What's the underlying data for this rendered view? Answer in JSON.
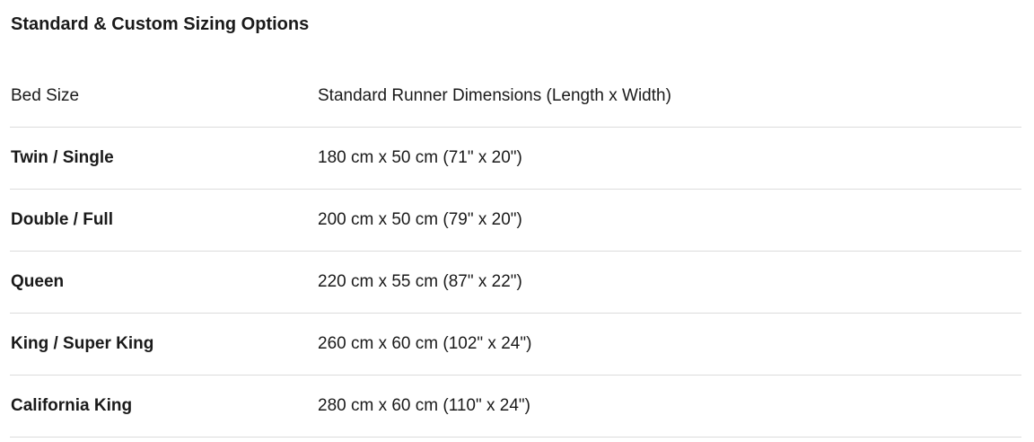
{
  "title": "Standard & Custom Sizing Options",
  "table": {
    "headers": [
      "Bed Size",
      "Standard Runner Dimensions (Length x Width)"
    ],
    "rows": [
      [
        "Twin / Single",
        "180 cm x 50 cm (71\" x 20\")"
      ],
      [
        "Double / Full",
        "200 cm x 50 cm (79\" x 20\")"
      ],
      [
        "Queen",
        "220 cm x 55 cm (87\" x 22\")"
      ],
      [
        "King / Super King",
        "260 cm x 60 cm (102\" x 24\")"
      ],
      [
        "California King",
        "280 cm x 60 cm (110\" x 24\")"
      ]
    ]
  }
}
